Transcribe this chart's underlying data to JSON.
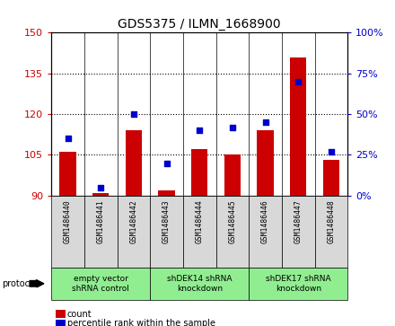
{
  "title": "GDS5375 / ILMN_1668900",
  "samples": [
    "GSM1486440",
    "GSM1486441",
    "GSM1486442",
    "GSM1486443",
    "GSM1486444",
    "GSM1486445",
    "GSM1486446",
    "GSM1486447",
    "GSM1486448"
  ],
  "counts": [
    106,
    91,
    114,
    92,
    107,
    105,
    114,
    141,
    103
  ],
  "percentiles": [
    35,
    5,
    50,
    20,
    40,
    42,
    45,
    70,
    27
  ],
  "ylim_left": [
    90,
    150
  ],
  "ylim_right": [
    0,
    100
  ],
  "yticks_left": [
    90,
    105,
    120,
    135,
    150
  ],
  "yticks_right": [
    0,
    25,
    50,
    75,
    100
  ],
  "groups": [
    {
      "label": "empty vector\nshRNA control",
      "start": 0,
      "end": 3,
      "color": "#90ee90"
    },
    {
      "label": "shDEK14 shRNA\nknockdown",
      "start": 3,
      "end": 6,
      "color": "#90ee90"
    },
    {
      "label": "shDEK17 shRNA\nknockdown",
      "start": 6,
      "end": 9,
      "color": "#90ee90"
    }
  ],
  "bar_color": "#cc0000",
  "dot_color": "#0000cc",
  "bar_width": 0.5,
  "bar_bottom": 90,
  "legend_count_label": "count",
  "legend_pct_label": "percentile rank within the sample",
  "protocol_label": "protocol",
  "left_tick_color": "#cc0000",
  "right_tick_color": "#0000cc",
  "grid_color": "black",
  "sample_box_color": "#d8d8d8",
  "title_fontsize": 10
}
